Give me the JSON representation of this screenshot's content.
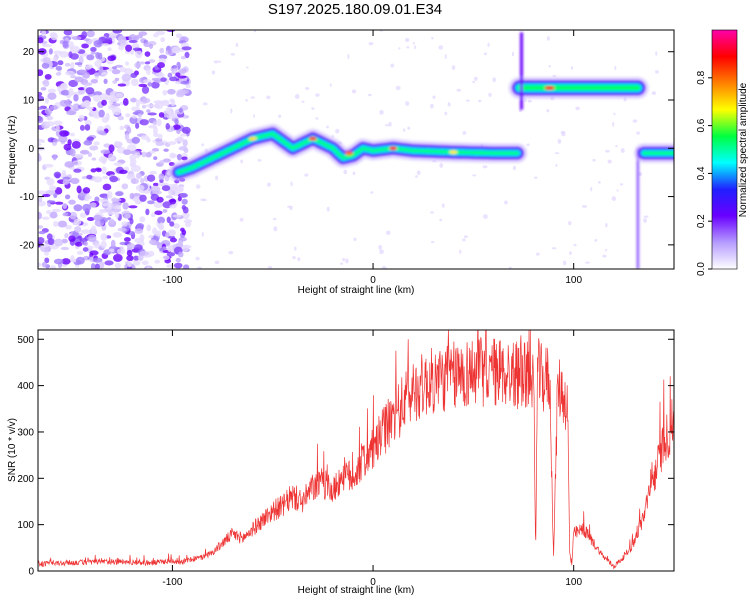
{
  "title": "S197.2025.180.09.01.E34",
  "chart_data": [
    {
      "type": "heatmap",
      "xlabel": "Height of straight line (km)",
      "ylabel": "Frequency (Hz)",
      "xlim": [
        -167,
        150
      ],
      "ylim": [
        -25,
        24.5
      ],
      "xticks": [
        -100,
        0,
        100
      ],
      "yticks": [
        20,
        10,
        0,
        -10,
        -20
      ],
      "xtick_labels": [
        "-100",
        "0",
        "100"
      ],
      "ytick_labels": [
        "20",
        "10",
        "0",
        "-10",
        "-20"
      ],
      "colorbar": {
        "label": "Normalized spectral amplitude",
        "range": [
          0.0,
          1.0
        ],
        "ticks": [
          0.0,
          0.2,
          0.4,
          0.6,
          0.8
        ],
        "tick_labels": [
          "0.0",
          "0.2",
          "0.4",
          "0.6",
          "0.8"
        ],
        "colors": [
          "#ffffff",
          "#b59cff",
          "#6a00ff",
          "#2020ff",
          "#00ffff",
          "#00ff40",
          "#ffff00",
          "#ff8000",
          "#ff0000",
          "#ff00aa"
        ]
      },
      "ridge": {
        "x": [
          -97,
          -90,
          -80,
          -70,
          -60,
          -50,
          -40,
          -30,
          -20,
          -15,
          -10,
          -5,
          0,
          10,
          20,
          40,
          60,
          72
        ],
        "y": [
          -5,
          -4,
          -2,
          0,
          2,
          3,
          0,
          2,
          0,
          -2,
          -1.5,
          0,
          -0.5,
          0,
          -0.5,
          -0.8,
          -1,
          -1
        ]
      },
      "segment_2": {
        "x": [
          73,
          132
        ],
        "y": 12.5
      },
      "segment_3": {
        "x": [
          135,
          150
        ],
        "y": -1
      },
      "grid": false
    },
    {
      "type": "line",
      "xlabel": "Height of straight line (km)",
      "ylabel": "SNR (10 * v/v)",
      "xlim": [
        -167,
        150
      ],
      "ylim": [
        0,
        520
      ],
      "xticks": [
        -100,
        0,
        100
      ],
      "yticks": [
        0,
        100,
        200,
        300,
        400,
        500
      ],
      "xtick_labels": [
        "-100",
        "0",
        "100"
      ],
      "ytick_labels": [
        "0",
        "100",
        "200",
        "300",
        "400",
        "500"
      ],
      "series": [
        {
          "color": "#ee3333",
          "x": [
            -167,
            -150,
            -130,
            -110,
            -100,
            -95,
            -90,
            -85,
            -80,
            -75,
            -70,
            -65,
            -60,
            -55,
            -50,
            -45,
            -40,
            -35,
            -30,
            -25,
            -20,
            -15,
            -10,
            -5,
            0,
            5,
            10,
            15,
            20,
            25,
            30,
            40,
            50,
            60,
            70,
            75,
            80,
            81,
            82,
            85,
            88,
            90,
            92,
            95,
            97,
            98,
            99,
            100,
            105,
            110,
            115,
            120,
            125,
            130,
            135,
            140,
            145,
            148,
            150
          ],
          "y": [
            15,
            18,
            20,
            18,
            22,
            20,
            25,
            30,
            40,
            60,
            80,
            70,
            90,
            110,
            130,
            140,
            160,
            150,
            180,
            190,
            170,
            210,
            200,
            240,
            260,
            300,
            330,
            360,
            390,
            400,
            410,
            420,
            430,
            430,
            425,
            420,
            420,
            40,
            430,
            410,
            420,
            30,
            400,
            380,
            350,
            40,
            10,
            80,
            90,
            60,
            30,
            10,
            30,
            60,
            120,
            200,
            280,
            300,
            330
          ]
        }
      ],
      "grid": false
    }
  ]
}
